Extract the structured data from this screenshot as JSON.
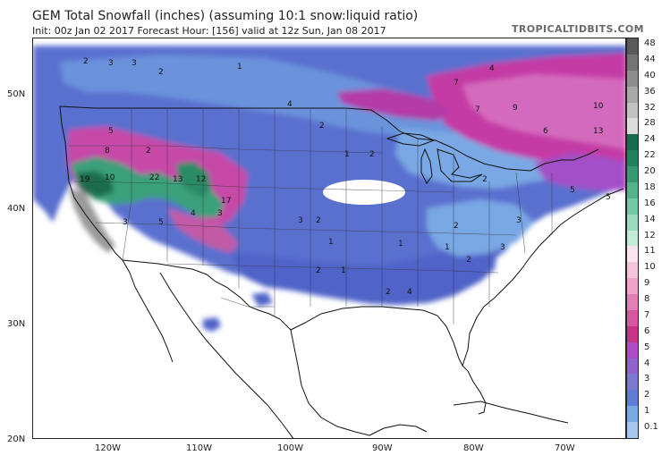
{
  "header": {
    "title": "GEM Total Snowfall (inches) (assuming 10:1 snow:liquid ratio)",
    "subtitle": "Init: 00z Jan 02 2017   Forecast Hour: [156]   valid at 12z Sun, Jan 08 2017",
    "credit": "TROPICALTIDBITS.COM"
  },
  "map": {
    "lat_labels": [
      "50N",
      "40N",
      "30N",
      "20N"
    ],
    "lon_labels": [
      "120W",
      "110W",
      "100W",
      "90W",
      "80W",
      "70W"
    ]
  },
  "colorbar": {
    "levels": [
      "48",
      "44",
      "40",
      "36",
      "32",
      "28",
      "24",
      "22",
      "20",
      "18",
      "16",
      "14",
      "12",
      "11",
      "10",
      "9",
      "8",
      "7",
      "6",
      "5",
      "4",
      "3",
      "2",
      "1",
      "0.1"
    ],
    "colors": [
      "#5a5a5a",
      "#747474",
      "#8e8e8e",
      "#a8a8a8",
      "#c2c2c2",
      "#dcdcdc",
      "#166c4c",
      "#23825e",
      "#359a72",
      "#52b38c",
      "#74c9a6",
      "#9adcc0",
      "#c0ecd8",
      "#fbe4ef",
      "#f5c4dd",
      "#eea3cb",
      "#e47eb7",
      "#d856a0",
      "#c63389",
      "#ac4cc7",
      "#9262cc",
      "#7b78d0",
      "#5f7dd6",
      "#7aa9e4",
      "#a3c8ef"
    ]
  },
  "snow_labels": [
    {
      "text": "2"
    },
    {
      "text": "3"
    },
    {
      "text": "3"
    },
    {
      "text": "2"
    },
    {
      "text": "1"
    },
    {
      "text": "8"
    },
    {
      "text": "5"
    },
    {
      "text": "2"
    },
    {
      "text": "4"
    },
    {
      "text": "7"
    },
    {
      "text": "9"
    },
    {
      "text": "10"
    },
    {
      "text": "13"
    },
    {
      "text": "7"
    },
    {
      "text": "6"
    },
    {
      "text": "19"
    },
    {
      "text": "10"
    },
    {
      "text": "22"
    },
    {
      "text": "13"
    },
    {
      "text": "12"
    },
    {
      "text": "17"
    },
    {
      "text": "3"
    },
    {
      "text": "5"
    },
    {
      "text": "4"
    },
    {
      "text": "3"
    },
    {
      "text": "4"
    },
    {
      "text": "2"
    },
    {
      "text": "1"
    },
    {
      "text": "2"
    },
    {
      "text": "3"
    },
    {
      "text": "2"
    },
    {
      "text": "1"
    },
    {
      "text": "1"
    },
    {
      "text": "2"
    },
    {
      "text": "1"
    },
    {
      "text": "2"
    },
    {
      "text": "4"
    },
    {
      "text": "2"
    },
    {
      "text": "5"
    },
    {
      "text": "5"
    },
    {
      "text": "3"
    },
    {
      "text": "2"
    },
    {
      "text": "1"
    },
    {
      "text": "2"
    },
    {
      "text": "3"
    }
  ]
}
